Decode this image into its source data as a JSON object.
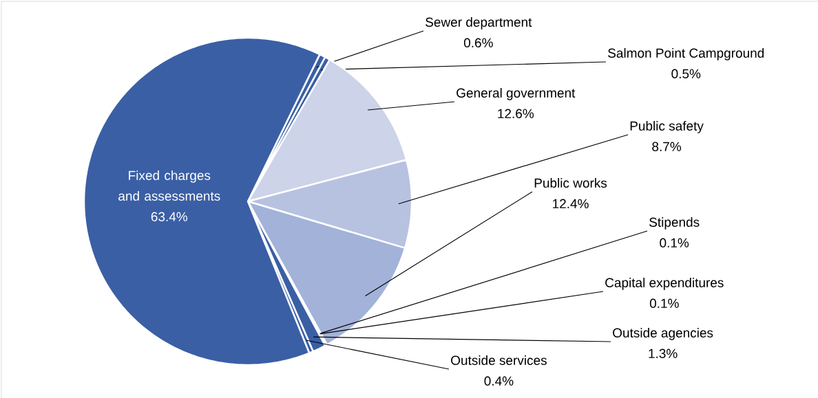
{
  "chart_data": {
    "type": "pie",
    "categories": [
      "Sewer department",
      "Salmon Point Campground",
      "General government",
      "Public safety",
      "Public works",
      "Stipends",
      "Capital expenditures",
      "Outside agencies",
      "Outside services",
      "Fixed charges and assessments"
    ],
    "values": [
      0.6,
      0.5,
      12.6,
      8.7,
      12.4,
      0.1,
      0.1,
      1.3,
      0.4,
      63.4
    ],
    "value_labels": [
      "0.6%",
      "0.5%",
      "12.6%",
      "8.7%",
      "12.4%",
      "0.1%",
      "0.1%",
      "1.3%",
      "0.4%",
      "63.4%"
    ],
    "colors": [
      "#3a5fa5",
      "#3a5fa5",
      "#cdd3e8",
      "#b6c2e0",
      "#a2b2d9",
      "#3a5fa5",
      "#3a5fa5",
      "#3a5fa5",
      "#3a5fa5",
      "#3a5fa5"
    ]
  }
}
